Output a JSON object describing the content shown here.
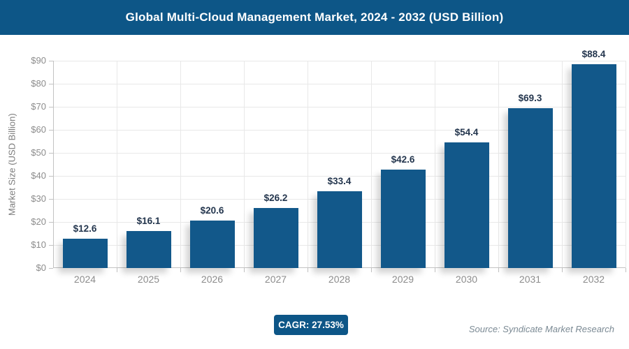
{
  "header": {
    "title": "Global Multi-Cloud Management Market, 2024 - 2032 (USD Billion)"
  },
  "chart_data": {
    "type": "bar",
    "title": "Global Multi-Cloud Management Market, 2024 - 2032 (USD Billion)",
    "categories": [
      "2024",
      "2025",
      "2026",
      "2027",
      "2028",
      "2029",
      "2030",
      "2031",
      "2032"
    ],
    "values": [
      12.6,
      16.1,
      20.6,
      26.2,
      33.4,
      42.6,
      54.4,
      69.3,
      88.4
    ],
    "bar_labels": [
      "$12.6",
      "$16.1",
      "$20.6",
      "$26.2",
      "$33.4",
      "$42.6",
      "$54.4",
      "$69.3",
      "$88.4"
    ],
    "xlabel": "",
    "ylabel": "Market Size (USD Billion)",
    "ylim": [
      0,
      90
    ],
    "ytick_step": 10,
    "ytick_labels": [
      "$0",
      "$10",
      "$20",
      "$30",
      "$40",
      "$50",
      "$60",
      "$70",
      "$80",
      "$90"
    ],
    "grid": true,
    "legend": false
  },
  "footer": {
    "cagr_label": "CAGR: 27.53%",
    "source": "Source: Syndicate Market Research"
  },
  "colors": {
    "accent": "#0d5687",
    "bar": "#12588a",
    "grid": "#e8e8e8",
    "axis": "#c2c2c2",
    "tick_label": "#8c8c8c",
    "axis_title": "#7c7c7c",
    "data_label": "#24364e",
    "source_text": "#7b8a94"
  }
}
